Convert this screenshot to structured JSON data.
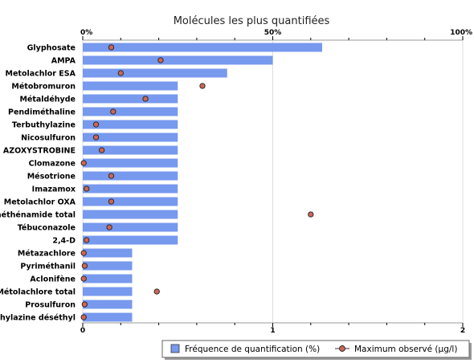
{
  "chart_data": {
    "type": "bar",
    "orientation": "horizontal",
    "title": "Molécules les plus quantifiées",
    "categories": [
      "Glyphosate",
      "AMPA",
      "Metolachlor ESA",
      "Métobromuron",
      "Métaldéhyde",
      "Pendiméthaline",
      "Terbuthylazine",
      "Nicosulfuron",
      "AZOXYSTROBINE",
      "Clomazone",
      "Mésotrione",
      "Imazamox",
      "Metolachlor OXA",
      "Diméthénamide total",
      "Tébuconazole",
      "2,4-D",
      "Métazachlore",
      "Pyriméthanil",
      "Aclonifène",
      "Métolachlore total",
      "Prosulfuron",
      "Terbuthylazine déséthyl"
    ],
    "series": [
      {
        "name": "Fréquence de quantification (%)",
        "axis": "top",
        "color": "#7799ee",
        "values": [
          63,
          50,
          38,
          25,
          25,
          25,
          25,
          25,
          25,
          25,
          25,
          25,
          25,
          25,
          25,
          25,
          13,
          13,
          13,
          13,
          13,
          13
        ]
      },
      {
        "name": "Maximum observé (µg/l)",
        "axis": "bottom",
        "color": "#cc6655",
        "values": [
          0.15,
          0.41,
          0.2,
          0.63,
          0.33,
          0.16,
          0.07,
          0.07,
          0.1,
          0.005,
          0.15,
          0.02,
          0.15,
          1.2,
          0.14,
          0.02,
          0.005,
          0.01,
          0.005,
          0.39,
          0.01,
          0.005
        ]
      }
    ],
    "top_axis": {
      "min": 0,
      "max": 100,
      "ticks": [
        "0%",
        "50%",
        "100%"
      ]
    },
    "bottom_axis": {
      "min": 0,
      "max": 2,
      "ticks": [
        "0",
        "1",
        "2"
      ]
    },
    "grid": true,
    "legend_position": "bottom-right"
  }
}
